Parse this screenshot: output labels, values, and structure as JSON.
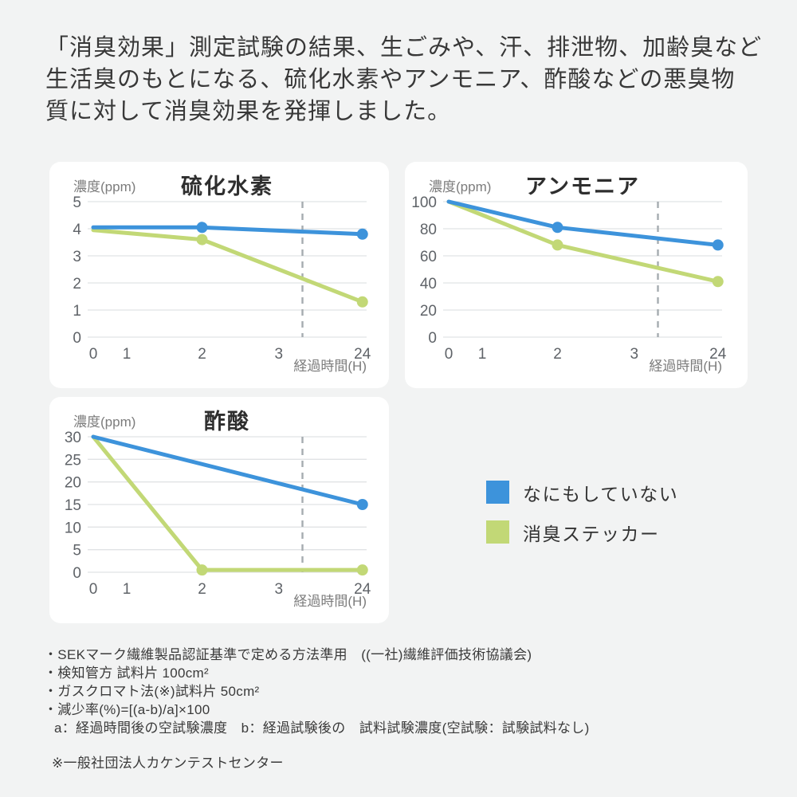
{
  "header": {
    "lines": [
      "「消臭効果」測定試験の結果、生ごみや、汗、排泄物、加齢臭など",
      "生活臭のもとになる、硫化水素やアンモニア、酢酸などの悪臭物",
      "質に対して消臭効果を発揮しました。"
    ]
  },
  "colors": {
    "blue": "#3D93DB",
    "green": "#C2D876",
    "grid": "#E0E3E5",
    "dashed": "#A6ACB0",
    "card": "#FFFFFF",
    "background": "#F2F3F3"
  },
  "legend": {
    "items": [
      {
        "label": "なにもしていない",
        "color": "#3D93DB"
      },
      {
        "label": "消臭ステッカー",
        "color": "#C2D876"
      }
    ]
  },
  "chart_data": [
    {
      "id": "hydrogen-sulfide",
      "type": "line",
      "title": "硫化水素",
      "ylabel": "濃度(ppm)",
      "xlabel": "経過時間(H)",
      "ylim": [
        0,
        5
      ],
      "yticks": [
        0,
        1,
        2,
        3,
        4,
        5
      ],
      "categories": [
        "0",
        "1",
        "2",
        "3",
        "24"
      ],
      "grid": "horizontal",
      "dashed_vline_between": [
        "3",
        "24"
      ],
      "series": [
        {
          "name": "なにもしていない",
          "color": "#3D93DB",
          "points": [
            {
              "x": "0",
              "y": 4.05
            },
            {
              "x": "2",
              "y": 4.05
            },
            {
              "x": "24",
              "y": 3.8
            }
          ],
          "marker_x": [
            "2",
            "24"
          ]
        },
        {
          "name": "消臭ステッカー",
          "color": "#C2D876",
          "points": [
            {
              "x": "0",
              "y": 3.95
            },
            {
              "x": "2",
              "y": 3.6
            },
            {
              "x": "24",
              "y": 1.3
            }
          ],
          "marker_x": [
            "2",
            "24"
          ]
        }
      ]
    },
    {
      "id": "ammonia",
      "type": "line",
      "title": "アンモニア",
      "ylabel": "濃度(ppm)",
      "xlabel": "経過時間(H)",
      "ylim": [
        0,
        100
      ],
      "yticks": [
        0,
        20,
        40,
        60,
        80,
        100
      ],
      "categories": [
        "0",
        "1",
        "2",
        "3",
        "24"
      ],
      "grid": "horizontal",
      "dashed_vline_between": [
        "3",
        "24"
      ],
      "series": [
        {
          "name": "なにもしていない",
          "color": "#3D93DB",
          "points": [
            {
              "x": "0",
              "y": 100
            },
            {
              "x": "2",
              "y": 81
            },
            {
              "x": "24",
              "y": 68
            }
          ],
          "marker_x": [
            "2",
            "24"
          ]
        },
        {
          "name": "消臭ステッカー",
          "color": "#C2D876",
          "points": [
            {
              "x": "0",
              "y": 100
            },
            {
              "x": "2",
              "y": 68
            },
            {
              "x": "24",
              "y": 41
            }
          ],
          "marker_x": [
            "2",
            "24"
          ]
        }
      ]
    },
    {
      "id": "acetic-acid",
      "type": "line",
      "title": "酢酸",
      "ylabel": "濃度(ppm)",
      "xlabel": "経過時間(H)",
      "ylim": [
        0,
        30
      ],
      "yticks": [
        0,
        5,
        10,
        15,
        20,
        25,
        30
      ],
      "categories": [
        "0",
        "1",
        "2",
        "3",
        "24"
      ],
      "grid": "horizontal",
      "dashed_vline_between": [
        "3",
        "24"
      ],
      "series": [
        {
          "name": "なにもしていない",
          "color": "#3D93DB",
          "points": [
            {
              "x": "0",
              "y": 30
            },
            {
              "x": "24",
              "y": 15
            }
          ],
          "marker_x": [
            "24"
          ]
        },
        {
          "name": "消臭ステッカー",
          "color": "#C2D876",
          "points": [
            {
              "x": "0",
              "y": 30
            },
            {
              "x": "2",
              "y": 0.5
            },
            {
              "x": "24",
              "y": 0.5
            }
          ],
          "marker_x": [
            "2",
            "24"
          ]
        }
      ]
    }
  ],
  "footnotes": {
    "lines": [
      "・SEKマーク繊維製品認証基準で定める方法準用　((一社)繊維評価技術協議会)",
      "・検知管方 試料片 100cm²",
      "・ガスクロマト法(※)試料片 50cm²",
      "・減少率(%)=[(a-b)/a]×100",
      "a：経過時間後の空試験濃度　b：経過試験後の　試料試験濃度(空試験：試験試料なし)"
    ],
    "note": "※一般社団法人カケンテストセンター"
  }
}
